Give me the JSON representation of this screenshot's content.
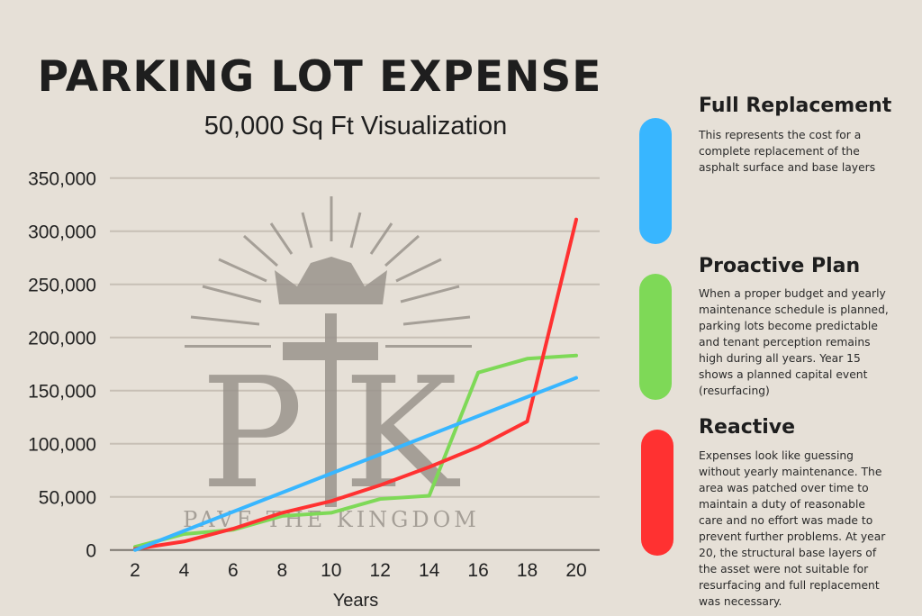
{
  "title": "PARKING LOT EXPENSE",
  "subtitle": "50,000 Sq Ft Visualization",
  "logo": {
    "monogram": "PK",
    "tagline": "PAVE THE KINGDOM"
  },
  "chart_data": {
    "type": "line",
    "xlabel": "Years",
    "ylabel": "",
    "x": [
      2,
      4,
      6,
      8,
      10,
      12,
      14,
      16,
      18,
      20
    ],
    "xticks": [
      "2",
      "4",
      "6",
      "8",
      "10",
      "12",
      "14",
      "16",
      "18",
      "20"
    ],
    "yticks": [
      "0",
      "50,000",
      "100,000",
      "150,000",
      "200,000",
      "250,000",
      "300,000",
      "350,000"
    ],
    "ylim": [
      0,
      350000
    ],
    "grid": true,
    "series": [
      {
        "name": "Full Replacement",
        "color": "#38b6ff",
        "values": [
          0,
          18000,
          36000,
          54000,
          72000,
          90000,
          108000,
          126000,
          144000,
          162000
        ]
      },
      {
        "name": "Proactive Plan",
        "color": "#7ed957",
        "values": [
          3000,
          15000,
          19000,
          32000,
          35000,
          48000,
          51000,
          167000,
          180000,
          183000
        ]
      },
      {
        "name": "Reactive",
        "color": "#ff3131",
        "values": [
          1000,
          8000,
          20000,
          35000,
          46000,
          61000,
          78000,
          97000,
          121000,
          311000
        ]
      }
    ]
  },
  "legend": [
    {
      "title": "Full Replacement",
      "color": "#38b6ff",
      "text": "This represents the cost for a complete replacement of the asphalt surface and base layers"
    },
    {
      "title": "Proactive Plan",
      "color": "#7ed957",
      "text": "When a proper budget and yearly maintenance schedule is planned, parking lots become predictable and tenant perception remains high during all years. Year 15 shows a planned capital event (resurfacing)"
    },
    {
      "title": "Reactive",
      "color": "#ff3131",
      "text": "Expenses look like guessing without yearly maintenance. The area was patched over time to maintain a duty of reasonable care and no effort was made to prevent further problems. At year 20, the structural base layers of the asset were not suitable for resurfacing and full replacement was necessary."
    }
  ]
}
